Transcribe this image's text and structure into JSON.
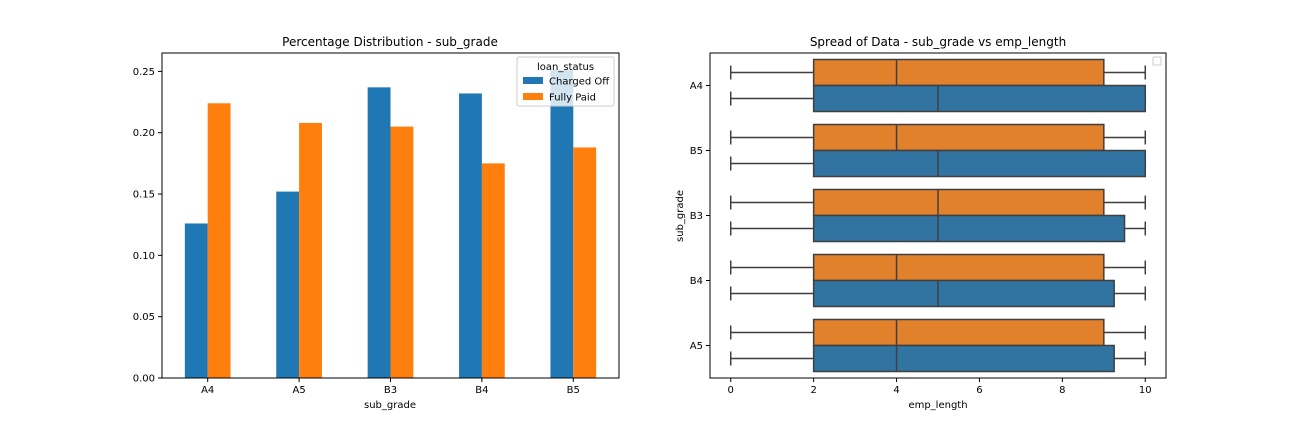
{
  "chart_data": [
    {
      "type": "bar",
      "title": "Percentage Distribution - sub_grade",
      "xlabel": "sub_grade",
      "ylabel": "",
      "categories": [
        "A4",
        "A5",
        "B3",
        "B4",
        "B5"
      ],
      "series": [
        {
          "name": "Charged Off",
          "color": "#1f77b4",
          "values": [
            0.126,
            0.152,
            0.237,
            0.232,
            0.251
          ]
        },
        {
          "name": "Fully Paid",
          "color": "#ff7f0e",
          "values": [
            0.224,
            0.208,
            0.205,
            0.175,
            0.188
          ]
        }
      ],
      "ylim": [
        0,
        0.265
      ],
      "yticks": [
        0.0,
        0.05,
        0.1,
        0.15,
        0.2,
        0.25
      ],
      "ytick_labels": [
        "0.00",
        "0.05",
        "0.10",
        "0.15",
        "0.20",
        "0.25"
      ],
      "legend": {
        "title": "loan_status",
        "placement": "top-right"
      },
      "grid": false
    },
    {
      "type": "boxplot",
      "title": "Spread of Data - sub_grade vs emp_length",
      "xlabel": "emp_length",
      "ylabel": "sub_grade",
      "orientation": "horizontal",
      "categories": [
        "A4",
        "B5",
        "B3",
        "B4",
        "A5"
      ],
      "xlim": [
        -0.5,
        10.5
      ],
      "xticks": [
        0,
        2,
        4,
        6,
        8,
        10
      ],
      "xtick_labels": [
        "0",
        "2",
        "4",
        "6",
        "8",
        "10"
      ],
      "series": [
        {
          "color": "#e1812c",
          "boxes": [
            {
              "whislo": 0,
              "q1": 2,
              "med": 4,
              "q3": 9,
              "whishi": 10
            },
            {
              "whislo": 0,
              "q1": 2,
              "med": 4,
              "q3": 9,
              "whishi": 10
            },
            {
              "whislo": 0,
              "q1": 2,
              "med": 5,
              "q3": 9,
              "whishi": 10
            },
            {
              "whislo": 0,
              "q1": 2,
              "med": 4,
              "q3": 9,
              "whishi": 10
            },
            {
              "whislo": 0,
              "q1": 2,
              "med": 4,
              "q3": 9,
              "whishi": 10
            }
          ]
        },
        {
          "color": "#3274a1",
          "boxes": [
            {
              "whislo": 0,
              "q1": 2,
              "med": 5,
              "q3": 10,
              "whishi": 10
            },
            {
              "whislo": 0,
              "q1": 2,
              "med": 5,
              "q3": 10,
              "whishi": 10
            },
            {
              "whislo": 0,
              "q1": 2,
              "med": 5,
              "q3": 9.5,
              "whishi": 10
            },
            {
              "whislo": 0,
              "q1": 2,
              "med": 5,
              "q3": 9.25,
              "whishi": 10
            },
            {
              "whislo": 0,
              "q1": 2,
              "med": 4,
              "q3": 9.25,
              "whishi": 10
            }
          ]
        }
      ],
      "legend": {
        "placement": "top-right",
        "entries": []
      },
      "grid": false
    }
  ]
}
